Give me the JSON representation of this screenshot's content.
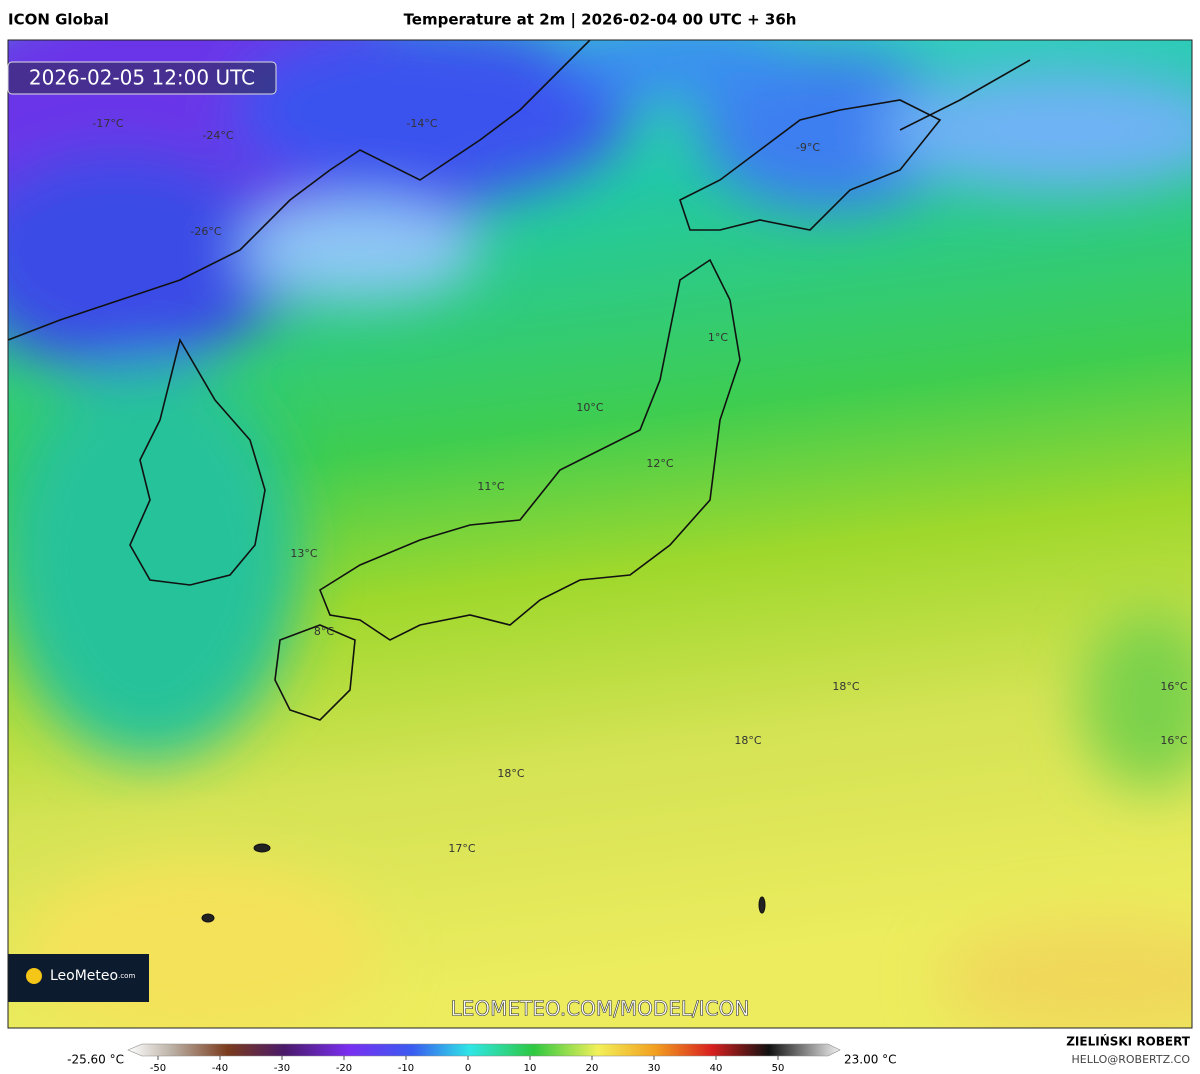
{
  "header": {
    "source": "ICON Global",
    "title": "Temperature at 2m | 2026-02-04 00 UTC + 36h"
  },
  "map": {
    "valid_time": "2026-02-05 12:00 UTC",
    "labels": [
      "-17°C",
      "-24°C",
      "-14°C",
      "-9°C",
      "-26°C",
      "1°C",
      "10°C",
      "12°C",
      "11°C",
      "13°C",
      "8°C",
      "18°C",
      "16°C",
      "18°C",
      "16°C",
      "18°C",
      "17°C"
    ],
    "logo": "LeoMeteo",
    "logo_suffix": ".com",
    "watermark": "LEOMETEO.COM/MODEL/ICON"
  },
  "colorbar": {
    "min_label": "-25.60 °C",
    "max_label": "23.00 °C",
    "ticks": [
      -50,
      -40,
      -30,
      -20,
      -10,
      0,
      10,
      20,
      30,
      40,
      50
    ]
  },
  "footer": {
    "author": "ZIELIŃSKI ROBERT",
    "email": "HELLO@ROBERTZ.CO"
  }
}
